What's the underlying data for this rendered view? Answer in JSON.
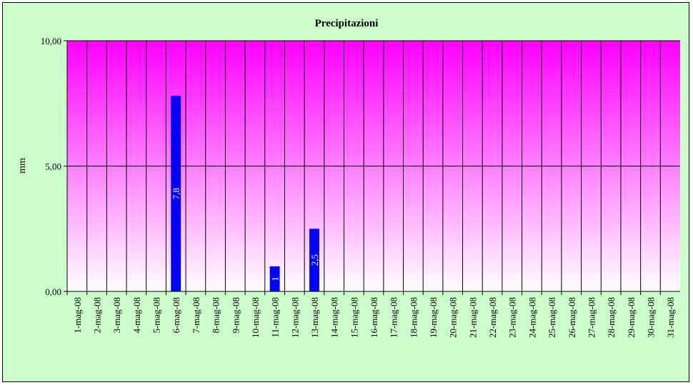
{
  "chart_data": {
    "type": "bar",
    "title": "Precipitazioni",
    "xlabel": "",
    "ylabel": "mm",
    "ylim": [
      0,
      10
    ],
    "yticks": [
      "0,00",
      "5,00",
      "10,00"
    ],
    "grid": true,
    "legend": "none",
    "colors": {
      "bar": "#0000ff",
      "plot_top": "#ff00ff",
      "plot_bottom": "#ffffff",
      "background": "#ccffcc"
    },
    "categories": [
      "1-mag-08",
      "2-mag-08",
      "3-mag-08",
      "4-mag-08",
      "5-mag-08",
      "6-mag-08",
      "7-mag-08",
      "8-mag-08",
      "9-mag-08",
      "10-mag-08",
      "11-mag-08",
      "12-mag-08",
      "13-mag-08",
      "14-mag-08",
      "15-mag-08",
      "16-mag-08",
      "17-mag-08",
      "18-mag-08",
      "19-mag-08",
      "20-mag-08",
      "21-mag-08",
      "22-mag-08",
      "23-mag-08",
      "24-mag-08",
      "25-mag-08",
      "26-mag-08",
      "27-mag-08",
      "28-mag-08",
      "29-mag-08",
      "30-mag-08",
      "31-mag-08"
    ],
    "values": [
      0,
      0,
      0,
      0,
      0,
      7.8,
      0,
      0,
      0,
      0,
      1,
      0,
      2.5,
      0,
      0,
      0,
      0,
      0,
      0,
      0,
      0,
      0,
      0,
      0,
      0,
      0,
      0,
      0,
      0,
      0,
      0
    ],
    "data_labels": [
      "",
      "",
      "",
      "",
      "",
      "7,8",
      "",
      "",
      "",
      "",
      "1",
      "",
      "2,5",
      "",
      "",
      "",
      "",
      "",
      "",
      "",
      "",
      "",
      "",
      "",
      "",
      "",
      "",
      "",
      "",
      "",
      ""
    ]
  }
}
